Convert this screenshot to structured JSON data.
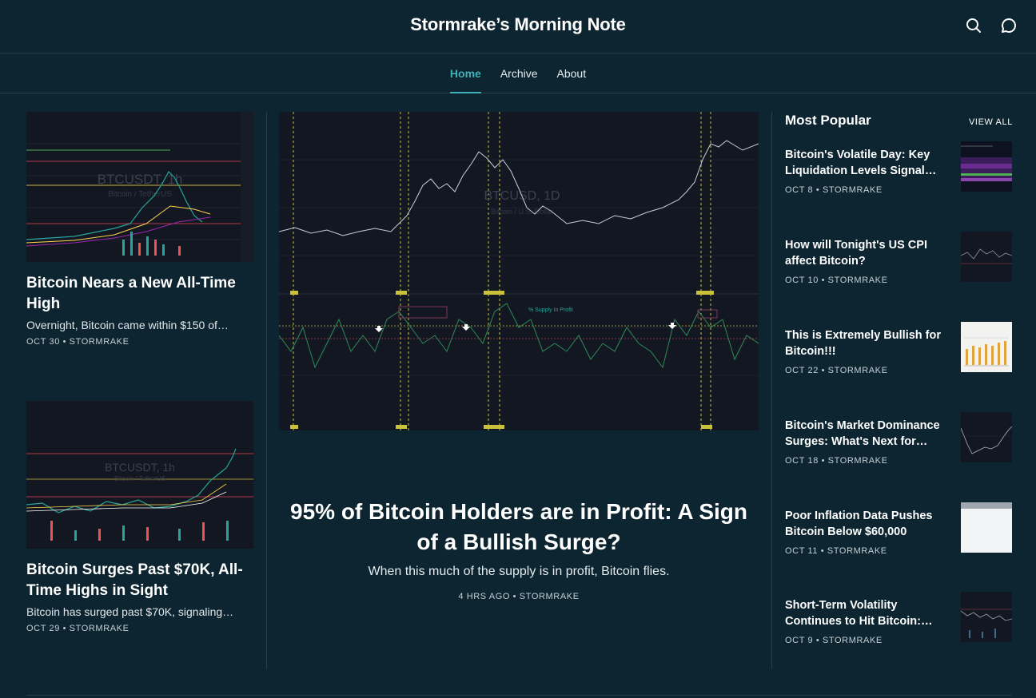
{
  "site": {
    "title": "Stormrake’s Morning Note"
  },
  "header_icons": [
    "search-icon",
    "chat-icon"
  ],
  "nav": {
    "items": [
      {
        "label": "Home",
        "active": true
      },
      {
        "label": "Archive",
        "active": false
      },
      {
        "label": "About",
        "active": false
      }
    ]
  },
  "left_posts": [
    {
      "title": "Bitcoin Nears a New All-Time High",
      "excerpt": "Overnight, Bitcoin came within $150 of…",
      "meta": "OCT 30 • STORMRAKE",
      "thumb": {
        "symbol": "BTCUSDT, 1h",
        "sub": "Bitcoin / TetherUS"
      }
    },
    {
      "title": "Bitcoin Surges Past $70K, All-Time Highs in Sight",
      "excerpt": "Bitcoin has surged past $70K, signaling…",
      "meta": "OCT 29 • STORMRAKE",
      "thumb": {
        "symbol": "BTCUSDT, 1h",
        "sub": "Bitcoin / TetherUS"
      }
    }
  ],
  "featured": {
    "title": "95% of Bitcoin Holders are in Profit: A Sign of a Bullish Surge?",
    "subtitle": "When this much of the supply is in profit, Bitcoin flies.",
    "meta": "4 HRS AGO • STORMRAKE",
    "chart": {
      "symbol": "BTCUSD, 1D",
      "sub": "Bitcoin / U.S. Dollar",
      "panel_label": "% Supply In Profit"
    }
  },
  "popular": {
    "heading": "Most Popular",
    "view_all": "VIEW ALL",
    "items": [
      {
        "title": "Bitcoin's Volatile Day: Key Liquidation Levels Signal…",
        "meta": "OCT 8 • STORMRAKE",
        "thumb": "purple-heatmap"
      },
      {
        "title": "How will Tonight's US CPI affect Bitcoin?",
        "meta": "OCT 10 • STORMRAKE",
        "thumb": "dark-chart"
      },
      {
        "title": "This is Extremely Bullish for Bitcoin!!!",
        "meta": "OCT 22 • STORMRAKE",
        "thumb": "light-bar-chart"
      },
      {
        "title": "Bitcoin's Market Dominance Surges: What's Next for…",
        "meta": "OCT 18 • STORMRAKE",
        "thumb": "dark-chart"
      },
      {
        "title": "Poor Inflation Data Pushes Bitcoin Below $60,000",
        "meta": "OCT 11 • STORMRAKE",
        "thumb": "blank-light"
      },
      {
        "title": "Short-Term Volatility Continues to Hit Bitcoin:…",
        "meta": "OCT 9 • STORMRAKE",
        "thumb": "dark-chart"
      }
    ]
  },
  "colors": {
    "background": "#0d2530",
    "accent": "#3eb1b8",
    "divider": "#24404c",
    "chart_bg": "#131722"
  }
}
